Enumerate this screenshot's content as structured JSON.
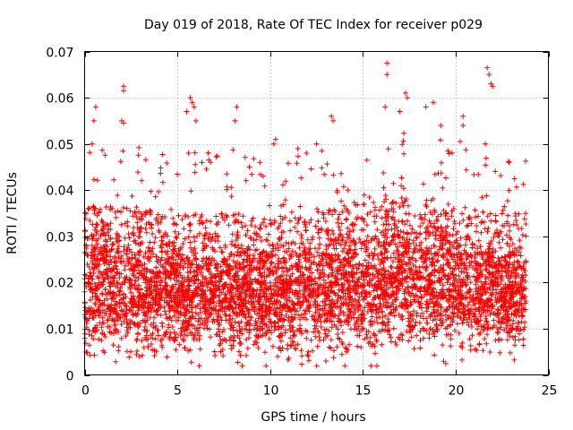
{
  "chart_data": {
    "type": "scatter",
    "title": "Day 019 of 2018, Rate Of TEC Index for receiver p029",
    "xlabel": "GPS time / hours",
    "ylabel": "ROTI / TECUs",
    "xlim": [
      0,
      25
    ],
    "ylim": [
      0,
      0.07
    ],
    "xticks": [
      0,
      5,
      10,
      15,
      20,
      25
    ],
    "xtick_labels": [
      "0",
      "5",
      "10",
      "15",
      "20",
      "25"
    ],
    "yticks": [
      0,
      0.01,
      0.02,
      0.03,
      0.04,
      0.05,
      0.06,
      0.07
    ],
    "ytick_labels": [
      "0",
      "0.01",
      "0.02",
      "0.03",
      "0.04",
      "0.05",
      "0.06",
      "0.07"
    ],
    "grid": true,
    "marker": "plus",
    "series": [
      {
        "color": "#ff0000",
        "x_range": [
          0,
          23.8
        ],
        "band": [
          [
            0,
            0.012,
            0.025
          ],
          [
            2,
            0.012,
            0.024
          ],
          [
            5,
            0.012,
            0.023
          ],
          [
            8,
            0.012,
            0.023
          ],
          [
            10,
            0.011,
            0.022
          ],
          [
            13,
            0.012,
            0.024
          ],
          [
            16,
            0.013,
            0.026
          ],
          [
            18,
            0.014,
            0.027
          ],
          [
            20,
            0.013,
            0.025
          ],
          [
            22,
            0.012,
            0.023
          ],
          [
            23.8,
            0.012,
            0.023
          ]
        ],
        "sample_count": 5200,
        "notable_points": [
          {
            "x": 2.1,
            "y": 0.0625
          },
          {
            "x": 2.1,
            "y": 0.0615
          },
          {
            "x": 2.0,
            "y": 0.055
          },
          {
            "x": 2.1,
            "y": 0.0545
          },
          {
            "x": 0.6,
            "y": 0.058
          },
          {
            "x": 0.5,
            "y": 0.055
          },
          {
            "x": 0.4,
            "y": 0.05
          },
          {
            "x": 5.7,
            "y": 0.06
          },
          {
            "x": 5.8,
            "y": 0.059
          },
          {
            "x": 5.9,
            "y": 0.058
          },
          {
            "x": 5.5,
            "y": 0.057
          },
          {
            "x": 6.0,
            "y": 0.055
          },
          {
            "x": 8.2,
            "y": 0.058
          },
          {
            "x": 8.1,
            "y": 0.055
          },
          {
            "x": 10.3,
            "y": 0.051
          },
          {
            "x": 10.2,
            "y": 0.05
          },
          {
            "x": 12.5,
            "y": 0.05
          },
          {
            "x": 13.3,
            "y": 0.056
          },
          {
            "x": 13.4,
            "y": 0.055
          },
          {
            "x": 16.3,
            "y": 0.0675
          },
          {
            "x": 16.3,
            "y": 0.065
          },
          {
            "x": 16.2,
            "y": 0.058
          },
          {
            "x": 17.3,
            "y": 0.061
          },
          {
            "x": 17.4,
            "y": 0.06
          },
          {
            "x": 17.0,
            "y": 0.057
          },
          {
            "x": 18.4,
            "y": 0.058
          },
          {
            "x": 18.8,
            "y": 0.059
          },
          {
            "x": 19.2,
            "y": 0.054
          },
          {
            "x": 20.4,
            "y": 0.056
          },
          {
            "x": 20.4,
            "y": 0.054
          },
          {
            "x": 21.7,
            "y": 0.0665
          },
          {
            "x": 21.8,
            "y": 0.065
          },
          {
            "x": 21.9,
            "y": 0.063
          },
          {
            "x": 22.0,
            "y": 0.0625
          },
          {
            "x": 21.6,
            "y": 0.05
          },
          {
            "x": 8.5,
            "y": 0.002
          },
          {
            "x": 10.4,
            "y": 0.004
          },
          {
            "x": 13.0,
            "y": 0.003
          }
        ]
      }
    ]
  }
}
